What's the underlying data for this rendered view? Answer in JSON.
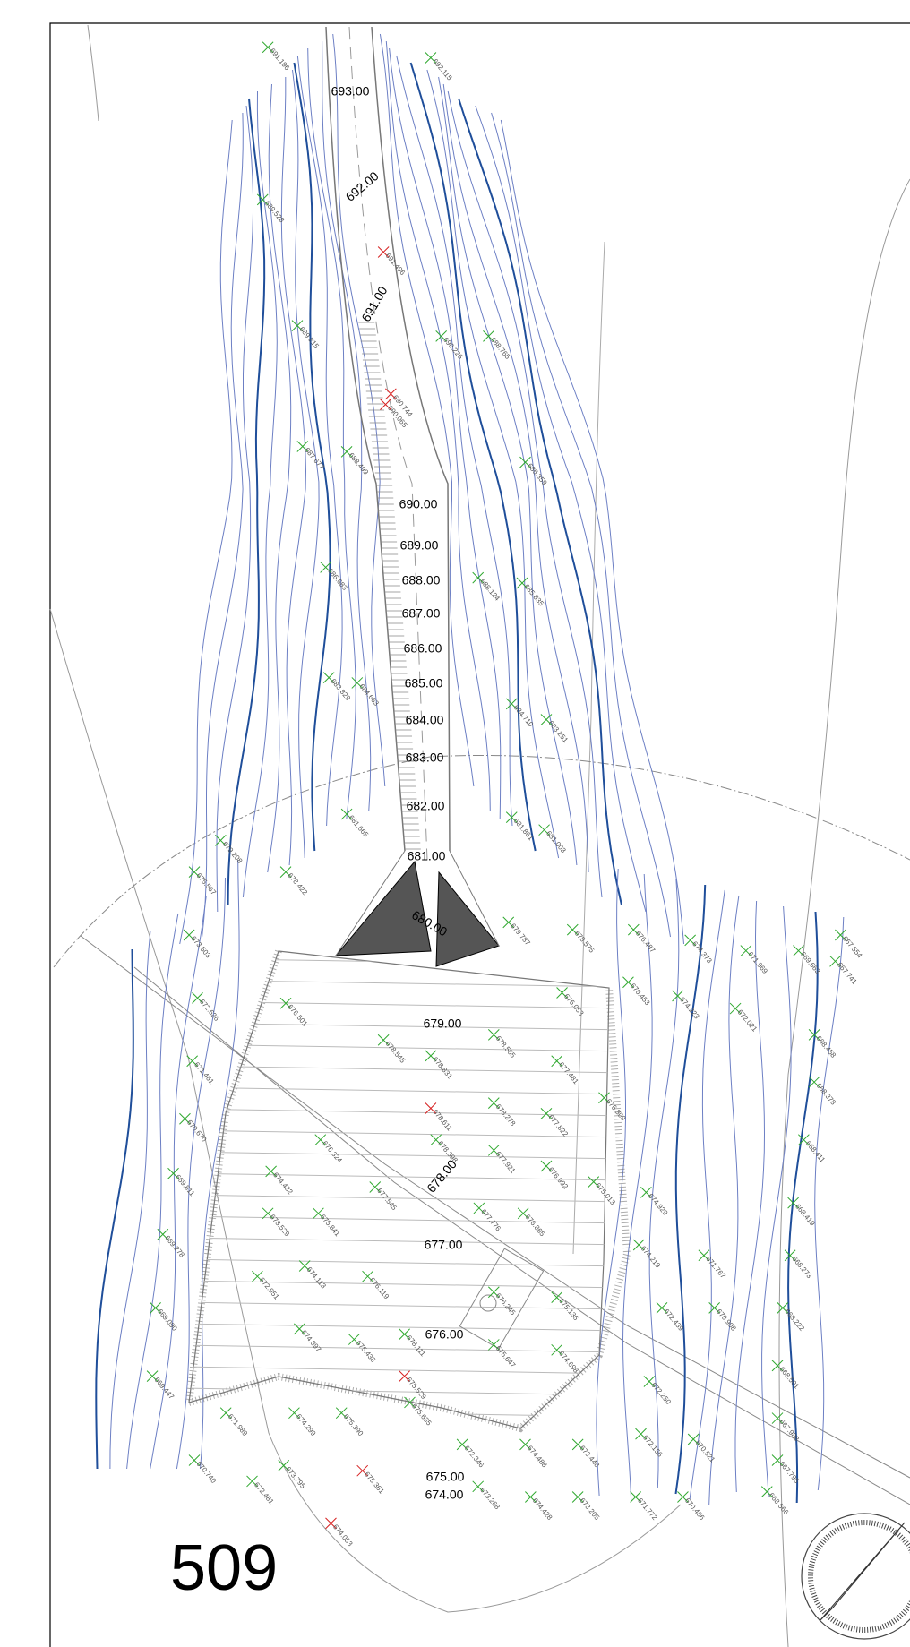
{
  "sheet_number": "509",
  "contour_labels": [
    "693.00",
    "692.00",
    "691.00",
    "690.00",
    "689.00",
    "688.00",
    "687.00",
    "686.00",
    "685.00",
    "684.00",
    "683.00",
    "682.00",
    "681.00",
    "680.00",
    "679.00",
    "678.00",
    "677.00",
    "676.00",
    "675.00",
    "674.00"
  ],
  "spot_heights": [
    "691.196",
    "692.115",
    "689.528",
    "689.215",
    "688.765",
    "690.226",
    "687.677",
    "688.499",
    "686.359",
    "686.683",
    "685.835",
    "688.124",
    "683.829",
    "684.663",
    "684.710",
    "683.251",
    "681.665",
    "681.861",
    "681.003",
    "679.208",
    "675.567",
    "678.422",
    "679.787",
    "678.575",
    "676.487",
    "674.373",
    "671.969",
    "669.663",
    "667.554",
    "667.741",
    "673.503",
    "672.626",
    "676.501",
    "676.053",
    "676.453",
    "674.223",
    "672.021",
    "668.458",
    "671.461",
    "670.670",
    "669.811",
    "669.278",
    "669.090",
    "669.447",
    "670.740",
    "672.481",
    "673.205",
    "671.772",
    "670.486",
    "668.566",
    "667.795",
    "667.988",
    "668.501",
    "668.222",
    "668.273",
    "668.419",
    "668.411",
    "668.378",
    "677.921",
    "676.992",
    "675.013",
    "674.929",
    "674.219",
    "671.767",
    "670.908",
    "672.439",
    "672.250",
    "670.521",
    "672.156",
    "673.448",
    "674.488",
    "672.346",
    "675.635",
    "675.390",
    "674.299",
    "671.989",
    "673.795",
    "674.428",
    "673.268",
    "678.545",
    "678.831",
    "678.565",
    "677.481",
    "676.309",
    "677.822",
    "678.278",
    "678.398",
    "676.324",
    "674.432",
    "675.841",
    "677.545",
    "677.776",
    "676.865",
    "673.529",
    "672.951",
    "674.113",
    "676.119",
    "674.397",
    "675.438",
    "676.245",
    "675.647",
    "674.698",
    "675.136",
    "678.111"
  ],
  "road_spot_heights": [
    "691.496",
    "690.744",
    "690.065",
    "678.611",
    "675.529",
    "675.361",
    "674.053"
  ]
}
